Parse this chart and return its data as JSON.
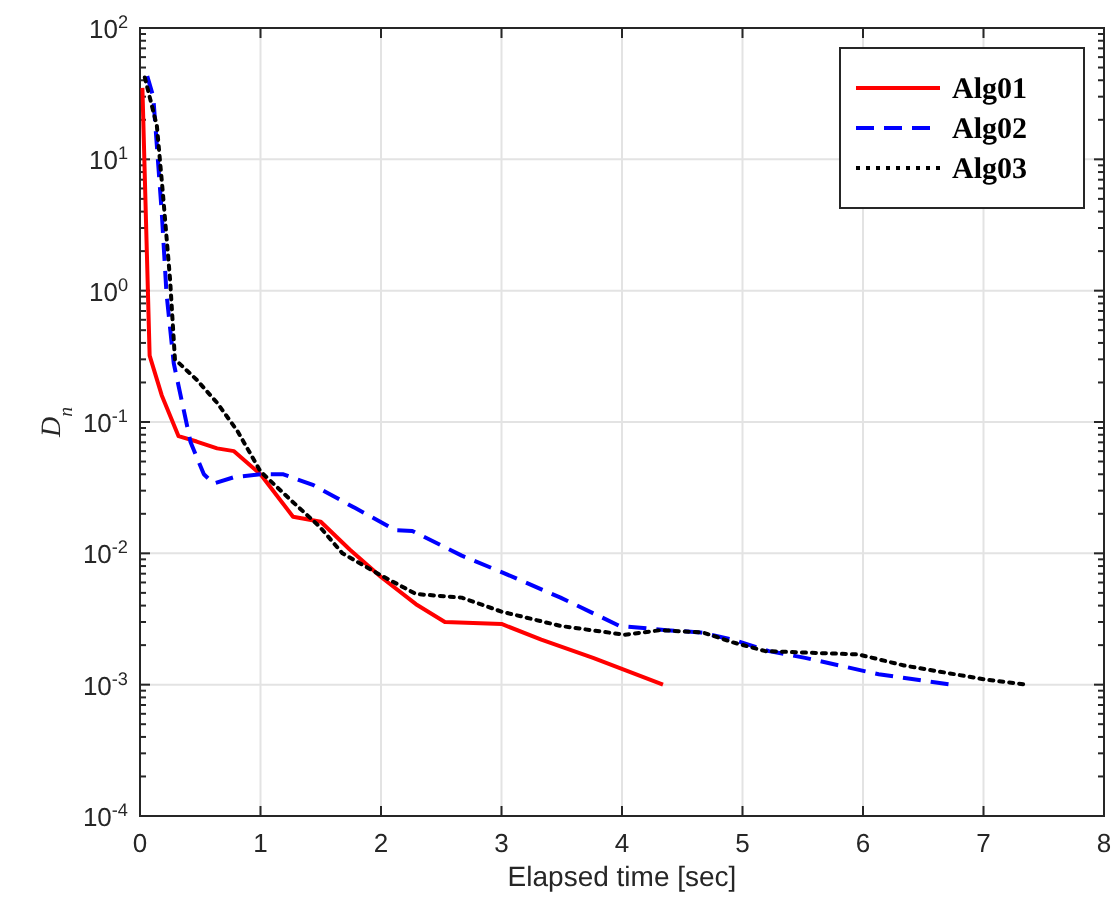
{
  "chart_data": {
    "type": "line",
    "xlabel": "Elapsed time [sec]",
    "ylabel": "D$_{n}$",
    "log": "y",
    "grid": true,
    "legend": "top right",
    "xlim": [
      0,
      8
    ],
    "xticks": [
      0,
      1,
      2,
      3,
      4,
      5,
      6,
      7,
      8
    ],
    "ylim": [
      0.0001,
      100
    ],
    "yticks": [
      {
        "value": 0.0001,
        "label": "10$^{-4}$"
      },
      {
        "value": 0.001,
        "label": "10$^{-3}$"
      },
      {
        "value": 0.01,
        "label": "10$^{-2}$"
      },
      {
        "value": 0.1,
        "label": "10$^{-1}$"
      },
      {
        "value": 1,
        "label": "10$^{0}$"
      },
      {
        "value": 10,
        "label": "10$^{1}$"
      },
      {
        "value": 100,
        "label": "10$^{2}$"
      }
    ],
    "series": [
      {
        "name": "Alg01",
        "color": "#ff0000",
        "line_style": "solid",
        "x": [
          0.02,
          0.08,
          0.18,
          0.32,
          0.47,
          0.64,
          0.78,
          1.0,
          1.27,
          1.5,
          1.74,
          2.0,
          2.29,
          2.53,
          3.0,
          3.33,
          3.76,
          4.34
        ],
        "values": [
          35,
          0.32,
          0.16,
          0.078,
          0.071,
          0.063,
          0.06,
          0.04,
          0.019,
          0.0174,
          0.0107,
          0.0066,
          0.0041,
          0.003,
          0.0029,
          0.0022,
          0.0016,
          0.001
        ]
      },
      {
        "name": "Alg02",
        "color": "#0000ff",
        "line_style": "dashed",
        "x": [
          0.06,
          0.11,
          0.18,
          0.22,
          0.28,
          0.42,
          0.53,
          0.61,
          0.78,
          1.0,
          1.19,
          1.44,
          1.79,
          2.12,
          2.26,
          2.67,
          3.0,
          3.49,
          3.98,
          4.37,
          4.65,
          4.92,
          5.22,
          5.52,
          6.13,
          6.73
        ],
        "values": [
          43,
          30,
          4,
          0.95,
          0.28,
          0.07,
          0.04,
          0.034,
          0.038,
          0.04,
          0.04,
          0.033,
          0.022,
          0.015,
          0.0148,
          0.0096,
          0.0072,
          0.0046,
          0.0028,
          0.0026,
          0.0025,
          0.0022,
          0.0018,
          0.0016,
          0.0012,
          0.001
        ]
      },
      {
        "name": "Alg03",
        "color": "#000000",
        "line_style": "dotted",
        "x": [
          0.04,
          0.14,
          0.19,
          0.25,
          0.29,
          0.47,
          0.64,
          0.81,
          1.0,
          1.24,
          1.49,
          1.68,
          2.0,
          2.29,
          2.67,
          3.0,
          3.49,
          4.02,
          4.32,
          4.67,
          4.92,
          5.19,
          5.96,
          6.34,
          7.0,
          7.36
        ],
        "values": [
          42,
          18,
          5.5,
          1.2,
          0.3,
          0.21,
          0.14,
          0.085,
          0.042,
          0.026,
          0.016,
          0.01,
          0.0068,
          0.0049,
          0.0046,
          0.0036,
          0.0028,
          0.0024,
          0.0026,
          0.0025,
          0.0021,
          0.0018,
          0.0017,
          0.0014,
          0.0011,
          0.001
        ]
      }
    ]
  }
}
